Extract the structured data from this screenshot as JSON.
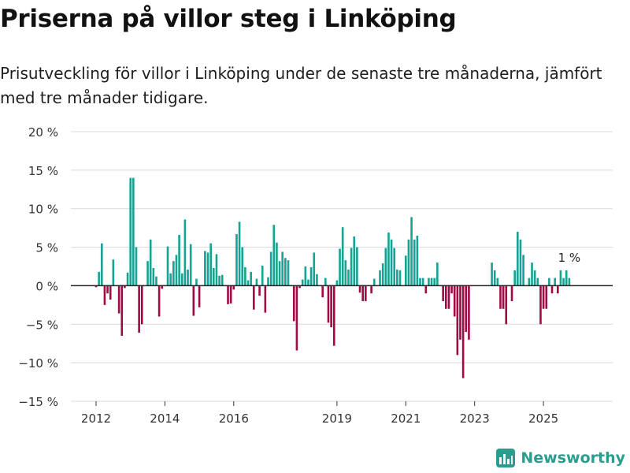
{
  "header": {
    "title": "Priserna på villor steg i Linköping",
    "subtitle": "Prisutveckling för villor i Linköping under de senaste tre månaderna, jämfört med tre månader tidigare."
  },
  "brand": {
    "name": "Newsworthy"
  },
  "colors": {
    "positive": "#16a394",
    "negative": "#a00b45",
    "grid": "#d9d9d9",
    "axis": "#333333",
    "brand": "#2a9d8f"
  },
  "chart_data": {
    "type": "bar",
    "title": "Priserna på villor steg i Linköping",
    "xlabel": "",
    "ylabel": "",
    "unit": "%",
    "ylim": [
      -15,
      20
    ],
    "yticks": [
      20,
      15,
      10,
      5,
      0,
      -5,
      -10,
      -15
    ],
    "ytick_labels": [
      "20 %",
      "15 %",
      "10 %",
      "5 %",
      "0 %",
      "−5 %",
      "−10 %",
      "−15 %"
    ],
    "xticks": [
      2012,
      2014,
      2016,
      2019,
      2021,
      2023,
      2025
    ],
    "xtick_labels": [
      "2012",
      "2014",
      "2016",
      "2019",
      "2021",
      "2023",
      "2025"
    ],
    "x_start": "2012-01",
    "frequency": "monthly",
    "grid": true,
    "last_value_label": "1 %",
    "values": [
      -0.2,
      1.8,
      5.5,
      -2.5,
      -1.0,
      -1.8,
      3.4,
      0.0,
      -3.6,
      -6.5,
      -0.3,
      1.7,
      14.0,
      14.0,
      5.0,
      -6.1,
      -5.0,
      0.0,
      3.2,
      6.0,
      2.3,
      1.2,
      -4.0,
      -0.4,
      0.0,
      5.1,
      1.6,
      3.2,
      4.0,
      6.6,
      1.6,
      8.6,
      2.1,
      5.4,
      -3.9,
      0.9,
      -2.8,
      0.0,
      4.5,
      4.3,
      5.5,
      2.3,
      4.1,
      1.3,
      1.4,
      0.0,
      -2.4,
      -2.3,
      -0.5,
      6.7,
      8.3,
      5.0,
      2.4,
      0.7,
      1.8,
      -3.1,
      0.9,
      -1.3,
      2.6,
      -3.5,
      1.1,
      4.4,
      7.9,
      5.6,
      3.2,
      4.4,
      3.6,
      3.3,
      0.0,
      -4.6,
      -8.4,
      -0.3,
      0.8,
      2.5,
      0.8,
      2.4,
      4.3,
      1.5,
      0.0,
      -1.5,
      1.0,
      -4.8,
      -5.4,
      -7.8,
      0.7,
      4.8,
      7.6,
      3.3,
      2.1,
      4.9,
      6.4,
      5.0,
      -0.9,
      -2.0,
      -2.0,
      0.0,
      -1.0,
      0.9,
      0.0,
      2.0,
      2.9,
      4.9,
      6.9,
      6.0,
      4.9,
      2.1,
      2.0,
      0.0,
      3.9,
      6.0,
      8.9,
      6.0,
      6.5,
      1.0,
      1.0,
      -1.0,
      1.0,
      1.0,
      1.0,
      3.0,
      0.0,
      -2.0,
      -3.0,
      -3.0,
      -1.0,
      -4.0,
      -9.0,
      -7.0,
      -12.0,
      -6.0,
      -7.0,
      0.0,
      0.0,
      0.0,
      0.0,
      0.0,
      0.0,
      0.0,
      3.0,
      2.0,
      1.0,
      -3.0,
      -3.0,
      -5.0,
      0.0,
      -2.0,
      2.0,
      7.0,
      6.0,
      4.0,
      0.0,
      1.0,
      3.0,
      2.0,
      1.0,
      -5.0,
      -3.0,
      -3.0,
      1.0,
      -1.0,
      1.0,
      -1.0,
      2.0,
      1.0,
      2.0,
      1.0
    ]
  }
}
